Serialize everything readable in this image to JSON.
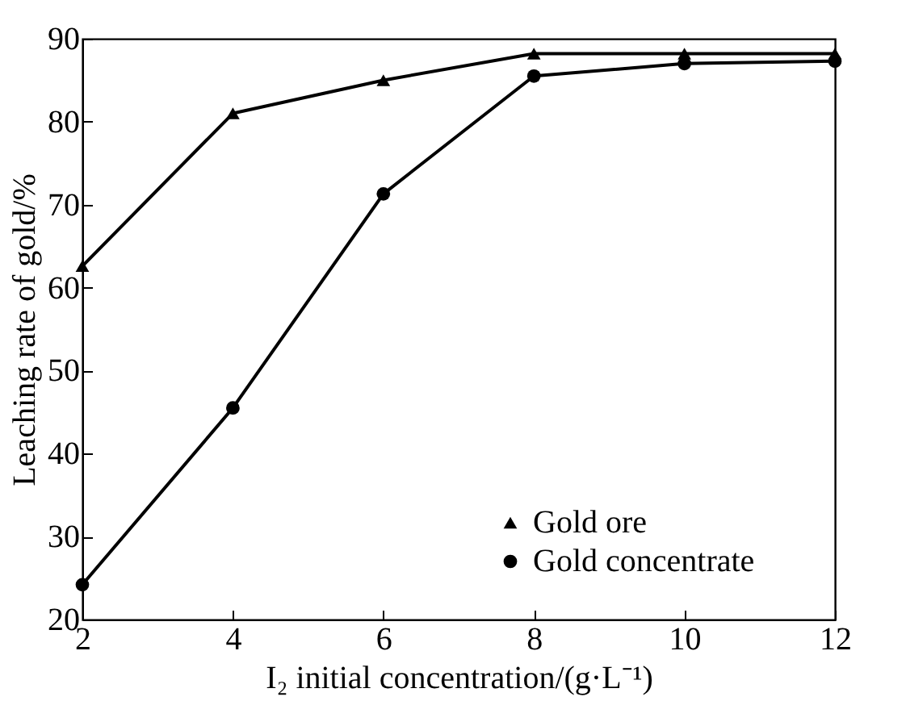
{
  "chart_data": {
    "type": "line",
    "xlabel": "I₂ initial concentration/(g·L⁻¹)",
    "ylabel": "Leaching rate of gold/%",
    "x": [
      2,
      4,
      6,
      8,
      10,
      12
    ],
    "series": [
      {
        "name": "Gold ore",
        "color": "#000000",
        "marker": "triangle",
        "values": [
          62.6,
          81,
          85,
          88.2,
          88.2,
          88.2
        ]
      },
      {
        "name": "Gold concentrate",
        "color": "#000000",
        "marker": "circle",
        "values": [
          24.2,
          45.5,
          71.3,
          85.5,
          87,
          87.3
        ]
      }
    ],
    "xlim": [
      2,
      12
    ],
    "xticks": [
      2,
      4,
      6,
      8,
      10,
      12
    ],
    "ylim": [
      20,
      90
    ],
    "yticks": [
      20,
      30,
      40,
      50,
      60,
      70,
      80,
      90
    ],
    "grid": false,
    "legend": "bottom right",
    "line_style": "solid"
  }
}
